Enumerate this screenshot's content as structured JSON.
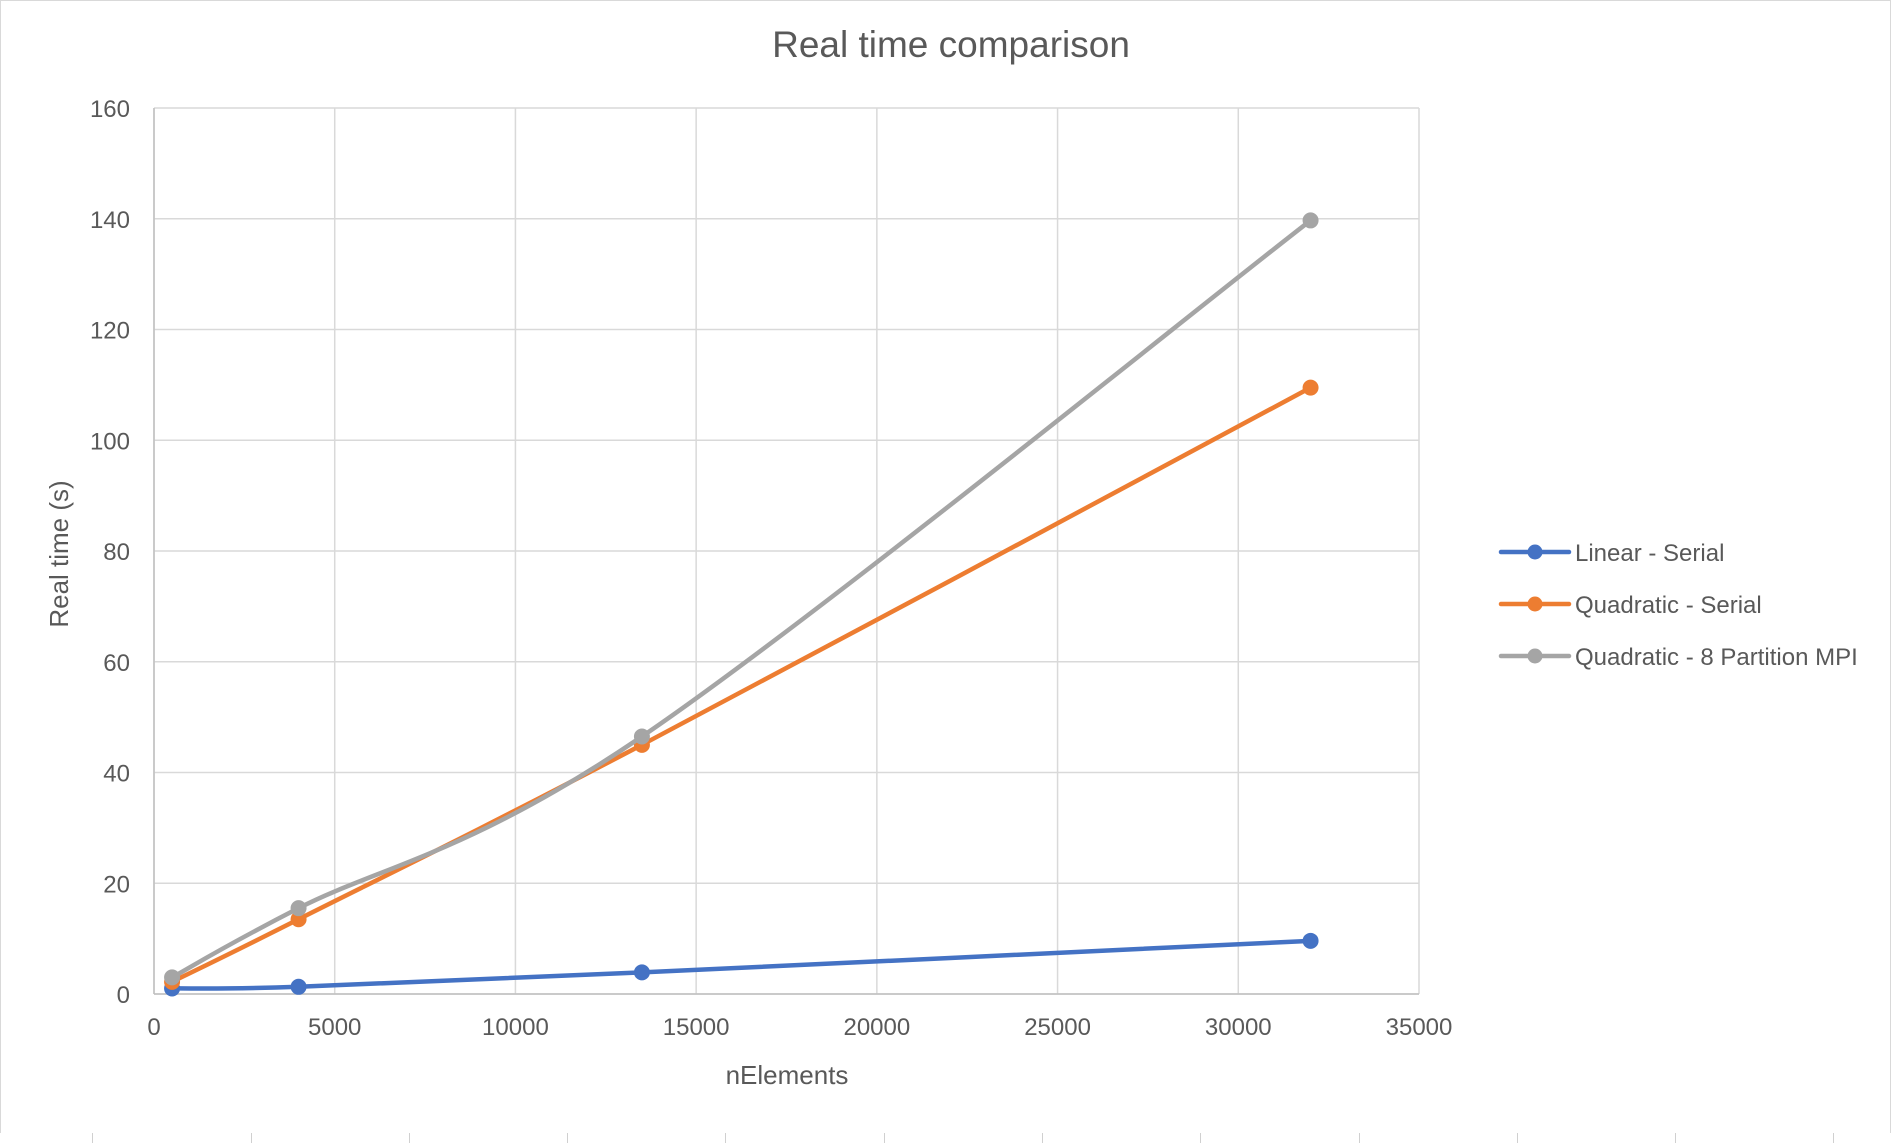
{
  "chart_data": {
    "type": "line",
    "title": "Real time comparison",
    "xlabel": "nElements",
    "ylabel": "Real time (s)",
    "xlim": [
      0,
      35000
    ],
    "ylim": [
      0,
      160
    ],
    "x_ticks": [
      0,
      5000,
      10000,
      15000,
      20000,
      25000,
      30000,
      35000
    ],
    "y_ticks": [
      0,
      20,
      40,
      60,
      80,
      100,
      120,
      140,
      160
    ],
    "grid": true,
    "legend_position": "right",
    "smooth_lines": true,
    "series": [
      {
        "name": "Linear - Serial",
        "color": "#4472C4",
        "x": [
          500,
          4000,
          13500,
          32000
        ],
        "y": [
          1.0,
          1.3,
          3.9,
          9.6
        ]
      },
      {
        "name": "Quadratic - Serial",
        "color": "#ED7D31",
        "x": [
          500,
          4000,
          13500,
          32000
        ],
        "y": [
          2.2,
          13.5,
          45.0,
          109.5
        ]
      },
      {
        "name": "Quadratic - 8 Partition MPI",
        "color": "#A5A5A5",
        "x": [
          500,
          4000,
          13500,
          32000
        ],
        "y": [
          3.0,
          15.5,
          46.5,
          139.7
        ]
      }
    ]
  }
}
